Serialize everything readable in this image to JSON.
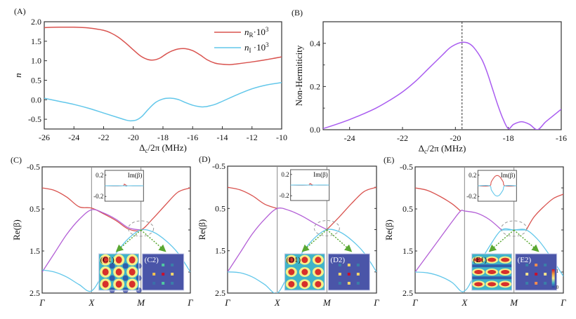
{
  "chart_data": [
    {
      "id": "A",
      "panel_label": "(A)",
      "type": "line",
      "xlabel": "Δc/2π (MHz)",
      "ylabel": "n",
      "xlim": [
        -26,
        -10
      ],
      "ylim": [
        -0.75,
        2.0
      ],
      "xticks": [
        -26,
        -24,
        -22,
        -20,
        -18,
        -16,
        -14,
        -12,
        -10
      ],
      "yticks": [
        -0.5,
        0.0,
        0.5,
        1.0,
        1.5,
        2.0
      ],
      "ytick_labels": [
        "-0.5",
        "0.0",
        "0.5",
        "1.0",
        "1.5",
        "2.0"
      ],
      "legend_position": "top-right",
      "series": [
        {
          "name": "nR·10^3",
          "legend_main": "n",
          "legend_sub": "R",
          "legend_tail": "·10",
          "legend_sup": "3",
          "color": "#d9534f",
          "x": [
            -26,
            -25,
            -24,
            -23,
            -22,
            -21.5,
            -21,
            -20.5,
            -20,
            -19.5,
            -19,
            -18.6,
            -18.2,
            -17.8,
            -17.4,
            -17,
            -16.5,
            -16,
            -15.5,
            -15,
            -14.5,
            -14,
            -13.5,
            -13,
            -12,
            -11,
            -10
          ],
          "y": [
            1.85,
            1.86,
            1.86,
            1.84,
            1.78,
            1.71,
            1.6,
            1.45,
            1.28,
            1.12,
            1.03,
            1.02,
            1.07,
            1.17,
            1.25,
            1.3,
            1.31,
            1.26,
            1.15,
            1.02,
            0.94,
            0.91,
            0.9,
            0.92,
            0.97,
            1.03,
            1.1
          ]
        },
        {
          "name": "nI·10^3",
          "legend_main": "n",
          "legend_sub": "I",
          "legend_tail": " ·10",
          "legend_sup": "3",
          "color": "#62c7ea",
          "x": [
            -26,
            -25,
            -24,
            -23,
            -22,
            -21,
            -20.5,
            -20.2,
            -19.8,
            -19.4,
            -19,
            -18.5,
            -18,
            -17.5,
            -17,
            -16.5,
            -16,
            -15.5,
            -15.2,
            -15,
            -14.5,
            -14,
            -13,
            -12,
            -11,
            -10
          ],
          "y": [
            0.04,
            -0.04,
            -0.12,
            -0.22,
            -0.34,
            -0.46,
            -0.52,
            -0.54,
            -0.52,
            -0.42,
            -0.25,
            -0.07,
            0.02,
            0.04,
            0.01,
            -0.07,
            -0.14,
            -0.18,
            -0.18,
            -0.17,
            -0.12,
            -0.04,
            0.13,
            0.28,
            0.38,
            0.44
          ]
        }
      ]
    },
    {
      "id": "B",
      "panel_label": "(B)",
      "type": "line",
      "xlabel": "Δc/2π (MHz)",
      "ylabel": "Non-Hermiticity",
      "xlim": [
        -25,
        -16
      ],
      "ylim": [
        0,
        0.5
      ],
      "xticks": [
        -24,
        -22,
        -20,
        -18,
        -16
      ],
      "yticks": [
        0.0,
        0.2,
        0.4
      ],
      "ytick_labels": [
        "0.0",
        "0.2",
        "0.4"
      ],
      "annotations": [
        {
          "type": "vertical-dashed-line",
          "x": -19.75
        }
      ],
      "series": [
        {
          "name": "Non-Hermiticity",
          "color": "#a95cf0",
          "x": [
            -25,
            -24.5,
            -24,
            -23.5,
            -23,
            -22.5,
            -22,
            -21.5,
            -21,
            -20.5,
            -20.2,
            -19.9,
            -19.7,
            -19.5,
            -19.3,
            -19.0,
            -18.8,
            -18.6,
            -18.4,
            -18.2,
            -18.0,
            -17.8,
            -17.5,
            -17.2,
            -16.9,
            -16.6,
            -16.3,
            -16
          ],
          "y": [
            0.005,
            0.025,
            0.047,
            0.072,
            0.1,
            0.135,
            0.175,
            0.225,
            0.285,
            0.345,
            0.38,
            0.4,
            0.405,
            0.4,
            0.38,
            0.325,
            0.265,
            0.19,
            0.115,
            0.05,
            0.005,
            0.025,
            0.037,
            0.025,
            0.0,
            0.035,
            0.065,
            0.095
          ]
        }
      ]
    },
    {
      "id": "C",
      "panel_label": "(C)",
      "type": "line",
      "ylabel": "Re(β)",
      "ylim_top": -0.5,
      "ylim_bottom": 2.5,
      "yticks": [
        -0.5,
        0.5,
        1.5,
        2.5
      ],
      "ytick_labels": [
        "-0.5",
        "0.5",
        "1.5",
        "2.5"
      ],
      "xtick_labels": [
        "Γ",
        "X",
        "M",
        "Γ"
      ],
      "series": [
        {
          "name": "band-upper",
          "color": "#d9534f",
          "x": [
            0,
            0.25,
            0.5,
            0.75,
            1.0,
            1.25,
            1.5,
            1.75,
            2.0,
            2.25,
            2.5,
            2.75,
            3.0
          ],
          "y": [
            0.0,
            0.06,
            0.22,
            0.45,
            0.48,
            0.62,
            0.78,
            0.98,
            1.0,
            0.72,
            0.4,
            0.1,
            0.0
          ]
        },
        {
          "name": "band-mid",
          "color": "#b35fd6",
          "x": [
            0,
            0.25,
            0.5,
            0.75,
            1.0,
            1.25,
            1.5,
            1.75,
            2.0
          ],
          "y": [
            2.0,
            1.55,
            1.1,
            0.75,
            0.52,
            0.6,
            0.75,
            0.95,
            1.0
          ]
        },
        {
          "name": "band-lower",
          "color": "#62c7ea",
          "x": [
            0,
            0.25,
            0.5,
            0.75,
            1.0,
            1.25,
            1.5,
            1.75,
            2.0,
            2.25,
            2.5,
            2.75,
            3.0
          ],
          "y": [
            1.95,
            2.0,
            2.12,
            2.3,
            2.45,
            2.0,
            1.55,
            1.2,
            1.0,
            1.05,
            1.25,
            1.55,
            2.0
          ]
        }
      ],
      "inset_im": {
        "title": "Im(β)",
        "yticks": [
          "0.2",
          "-0.2"
        ],
        "ylim": [
          -0.25,
          0.25
        ],
        "series": [
          {
            "color": "#d9534f",
            "x": [
              0,
              0.45,
              0.5,
              0.55,
              0.6,
              1.0
            ],
            "y": [
              0,
              0,
              0.03,
              0.01,
              0,
              0
            ]
          },
          {
            "color": "#62c7ea",
            "x": [
              0,
              0.5,
              0.55,
              0.6,
              1.0
            ],
            "y": [
              0,
              0,
              -0.01,
              0,
              0
            ]
          }
        ]
      },
      "field_map": {
        "label": "(C1)",
        "pattern": "checker"
      },
      "fourier_map": {
        "label": "(C2)",
        "peaks": [
          {
            "gx": 0,
            "gy": -1,
            "color": "#4fc9a0"
          },
          {
            "gx": 1,
            "gy": -1,
            "color": "#3a7fa8"
          },
          {
            "gx": -1,
            "gy": 0,
            "color": "#f2c14e"
          },
          {
            "gx": 0,
            "gy": 0,
            "color": "#c8102e"
          },
          {
            "gx": 1,
            "gy": 0,
            "color": "#f2d56b"
          },
          {
            "gx": -1,
            "gy": 1,
            "color": "#3a6fa8"
          },
          {
            "gx": 0,
            "gy": 1,
            "color": "#4fc9a0"
          },
          {
            "gx": 1,
            "gy": 1,
            "color": "#3a7fa8"
          }
        ]
      }
    },
    {
      "id": "D",
      "panel_label": "(D)",
      "type": "line",
      "ylabel": "Re(β)",
      "ylim_top": -0.5,
      "ylim_bottom": 2.5,
      "yticks": [
        -0.5,
        0.5,
        1.5,
        2.5
      ],
      "ytick_labels": [
        "-0.5",
        "0.5",
        "1.5",
        "2.5"
      ],
      "xtick_labels": [
        "Γ",
        "X",
        "M",
        "Γ"
      ],
      "series": [
        {
          "name": "band-upper",
          "color": "#d9534f",
          "x": [
            0,
            0.25,
            0.5,
            0.75,
            1.0
          ],
          "y": [
            0.0,
            0.06,
            0.2,
            0.4,
            0.5
          ]
        },
        {
          "name": "band-upper-2",
          "color": "#d9534f",
          "x": [
            2.0,
            2.25,
            2.5,
            2.75,
            3.0
          ],
          "y": [
            1.0,
            0.7,
            0.38,
            0.1,
            0.0
          ]
        },
        {
          "name": "band-mid",
          "color": "#b35fd6",
          "x": [
            0,
            0.25,
            0.5,
            0.75,
            1.0,
            1.25,
            1.5,
            1.75,
            2.0
          ],
          "y": [
            2.0,
            1.55,
            1.1,
            0.75,
            0.5,
            0.55,
            0.68,
            0.85,
            1.0
          ]
        },
        {
          "name": "band-lower",
          "color": "#62c7ea",
          "x": [
            0,
            0.25,
            0.5,
            0.75,
            1.0,
            1.25,
            1.5,
            1.75,
            2.0,
            2.25,
            2.5,
            2.75,
            3.0
          ],
          "y": [
            2.0,
            2.02,
            2.12,
            2.3,
            2.5,
            2.0,
            1.55,
            1.2,
            1.0,
            1.05,
            1.25,
            1.55,
            2.0
          ]
        }
      ],
      "inset_im": {
        "title": "Im(β)",
        "yticks": [
          "0.2",
          "-0.2"
        ],
        "ylim": [
          -0.25,
          0.25
        ],
        "series": [
          {
            "color": "#d9534f",
            "x": [
              0,
              0.45,
              0.5,
              0.55,
              0.6,
              1.0
            ],
            "y": [
              0,
              0,
              0.03,
              0.01,
              0,
              0
            ]
          },
          {
            "color": "#62c7ea",
            "x": [
              0,
              0.5,
              0.55,
              0.6,
              1.0
            ],
            "y": [
              0,
              0,
              -0.01,
              0,
              0
            ]
          }
        ]
      },
      "field_map": {
        "label": "(D1)",
        "pattern": "square"
      },
      "fourier_map": {
        "label": "(D2)",
        "peaks": [
          {
            "gx": -1,
            "gy": -1,
            "color": "#3a7fa8"
          },
          {
            "gx": 0,
            "gy": -1,
            "color": "#f2d56b"
          },
          {
            "gx": 1,
            "gy": -1,
            "color": "#3a7fa8"
          },
          {
            "gx": -1,
            "gy": 0,
            "color": "#f2d56b"
          },
          {
            "gx": 0,
            "gy": 0,
            "color": "#c8102e"
          },
          {
            "gx": 1,
            "gy": 0,
            "color": "#f2d56b"
          },
          {
            "gx": -1,
            "gy": 1,
            "color": "#3a7fa8"
          },
          {
            "gx": 0,
            "gy": 1,
            "color": "#f2d56b"
          },
          {
            "gx": 1,
            "gy": 1,
            "color": "#3a7fa8"
          }
        ]
      }
    },
    {
      "id": "E",
      "panel_label": "(E)",
      "type": "line",
      "ylabel": "Re(β)",
      "ylim_top": -0.5,
      "ylim_bottom": 2.5,
      "yticks": [
        -0.5,
        0.5,
        1.5,
        2.5
      ],
      "ytick_labels": [
        "-0.5",
        "0.5",
        "1.5",
        "2.5"
      ],
      "xtick_labels": [
        "Γ",
        "X",
        "M",
        "Γ"
      ],
      "series": [
        {
          "name": "band-upper",
          "color": "#d9534f",
          "x": [
            0,
            0.25,
            0.5,
            0.75,
            0.92
          ],
          "y": [
            0.0,
            0.06,
            0.2,
            0.38,
            0.55
          ]
        },
        {
          "name": "band-upper-2",
          "color": "#d9534f",
          "x": [
            2.25,
            2.4,
            2.6,
            2.8,
            3.0
          ],
          "y": [
            1.0,
            0.7,
            0.45,
            0.25,
            0.15
          ]
        },
        {
          "name": "band-mid",
          "color": "#b35fd6",
          "x": [
            0,
            0.25,
            0.5,
            0.75,
            0.92,
            1.0,
            1.25,
            1.5,
            1.75
          ],
          "y": [
            2.0,
            1.6,
            1.2,
            0.8,
            0.55,
            0.55,
            0.6,
            0.75,
            1.0
          ]
        },
        {
          "name": "band-lower",
          "color": "#62c7ea",
          "x": [
            0,
            0.25,
            0.5,
            0.75,
            0.92,
            1.0,
            1.1,
            1.3,
            1.5,
            1.75,
            2.0,
            2.25,
            2.5,
            2.75,
            3.0
          ],
          "y": [
            2.0,
            2.02,
            2.1,
            2.25,
            2.45,
            2.45,
            2.3,
            1.8,
            1.4,
            1.0,
            1.0,
            1.0,
            1.25,
            1.65,
            2.1
          ]
        },
        {
          "name": "band-flat",
          "color": "#62c7ea",
          "x": [
            1.75,
            2.0,
            2.25
          ],
          "y": [
            1.0,
            1.0,
            1.0
          ]
        }
      ],
      "inset_im": {
        "title": "Im(β)",
        "yticks": [
          "0.2",
          "-0.2"
        ],
        "ylim": [
          -0.25,
          0.25
        ],
        "series": [
          {
            "color": "#d9534f",
            "x": [
              0,
              0.3,
              0.35,
              0.45,
              0.55,
              0.65,
              0.7,
              1.0
            ],
            "y": [
              0,
              0,
              0.08,
              0.18,
              0.18,
              0.08,
              0,
              0
            ]
          },
          {
            "color": "#62c7ea",
            "x": [
              0,
              0.3,
              0.35,
              0.45,
              0.55,
              0.65,
              0.7,
              1.0
            ],
            "y": [
              0,
              0,
              -0.08,
              -0.18,
              -0.18,
              -0.08,
              0,
              0
            ]
          }
        ]
      },
      "field_map": {
        "label": "(E1)",
        "pattern": "stripes"
      },
      "fourier_map": {
        "label": "(E2)",
        "peaks": [
          {
            "gx": -1,
            "gy": -1,
            "color": "#3a7fa8"
          },
          {
            "gx": 0,
            "gy": -1,
            "color": "#f28c4e"
          },
          {
            "gx": 1,
            "gy": -1,
            "color": "#3a7fa8"
          },
          {
            "gx": -1,
            "gy": 0,
            "color": "#f2e28b"
          },
          {
            "gx": 0,
            "gy": 0,
            "color": "#c8102e"
          },
          {
            "gx": 1,
            "gy": 0,
            "color": "#f2e28b"
          },
          {
            "gx": -1,
            "gy": 1,
            "color": "#3a7fa8"
          },
          {
            "gx": 0,
            "gy": 1,
            "color": "#f28c4e"
          },
          {
            "gx": 1,
            "gy": 1,
            "color": "#3a7fa8"
          }
        ]
      },
      "colorbar": {
        "max_label": "1",
        "min_label": "0"
      }
    }
  ]
}
